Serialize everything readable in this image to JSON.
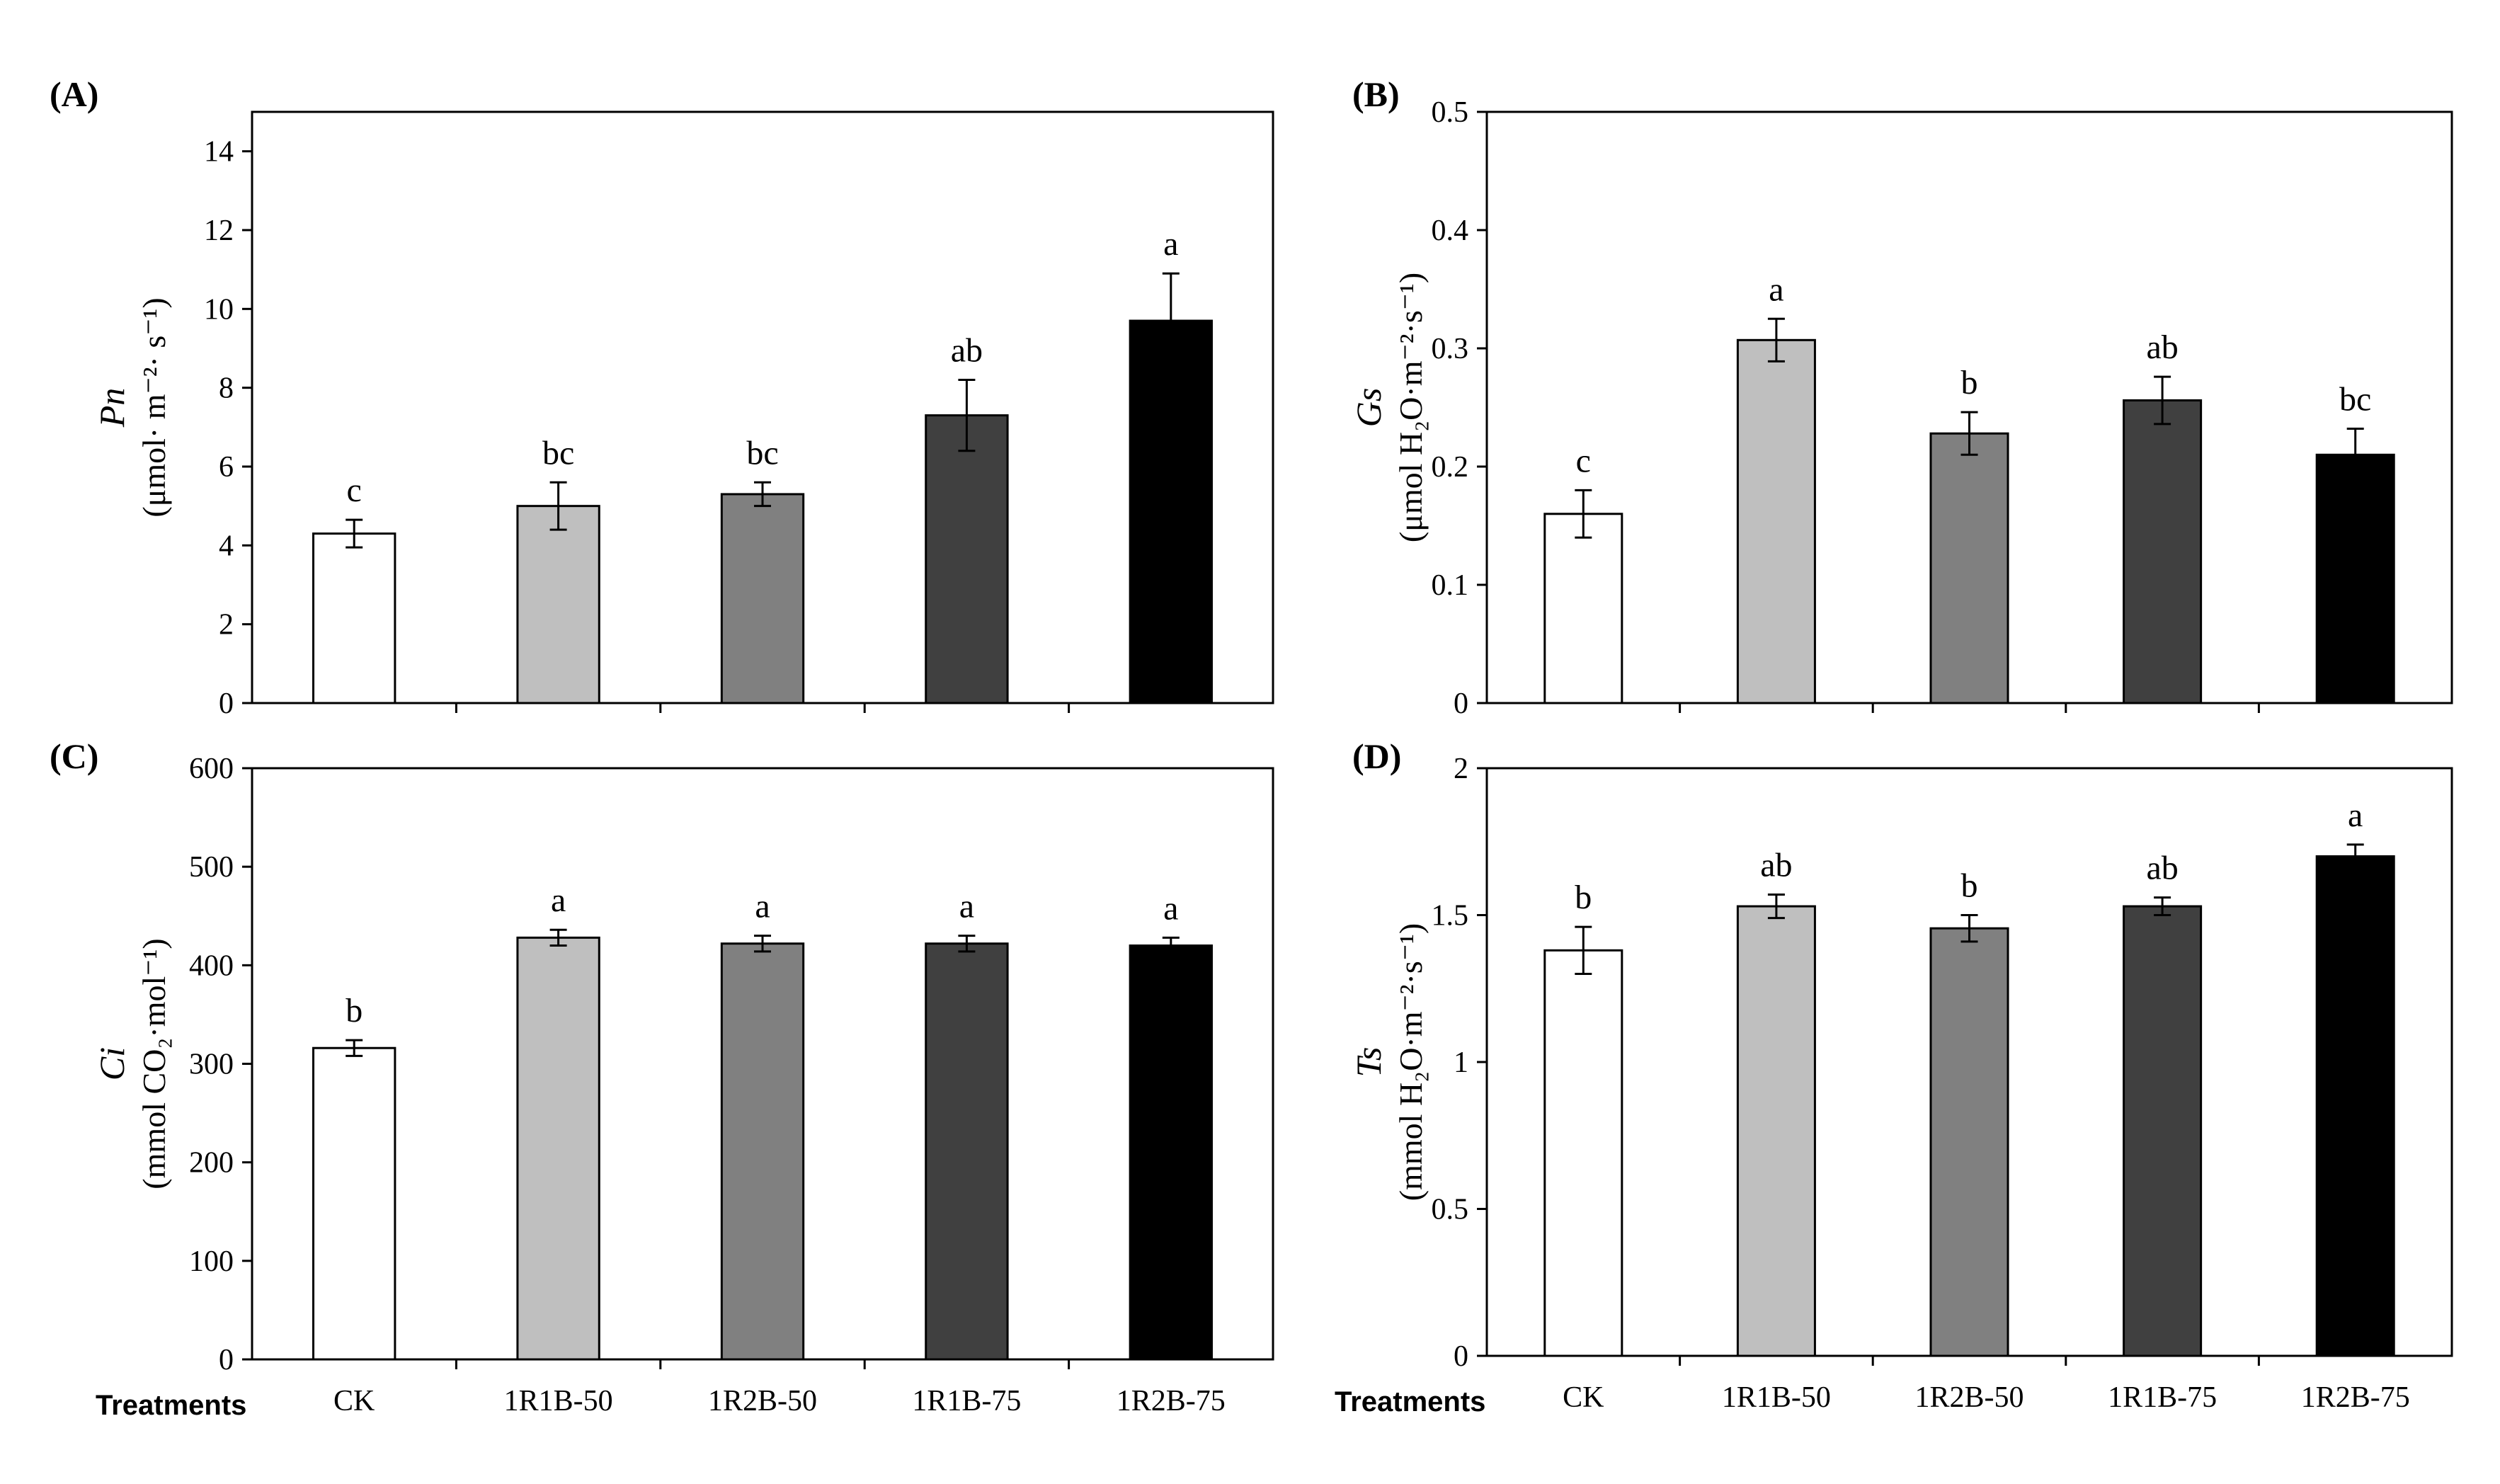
{
  "bar_colors": [
    "#ffffff",
    "#bfbfbf",
    "#808080",
    "#404040",
    "#000000"
  ],
  "chart_data": [
    {
      "type": "bar",
      "panel": "(A)",
      "ylabel_var": "Pn",
      "ylabel_unit": "(μmol· m⁻²· s⁻¹)",
      "xlabel": "",
      "categories": [
        "CK",
        "1R1B-50",
        "1R2B-50",
        "1R1B-75",
        "1R2B-75"
      ],
      "values": [
        4.3,
        5.0,
        5.3,
        7.3,
        9.7
      ],
      "errors": [
        0.35,
        0.6,
        0.3,
        0.9,
        1.2
      ],
      "significance": [
        "c",
        "bc",
        "bc",
        "ab",
        "a"
      ],
      "ylim": [
        0,
        15
      ],
      "yticks": [
        0,
        2,
        4,
        6,
        8,
        10,
        12,
        14
      ],
      "ytick_labels": [
        "0",
        "2",
        "4",
        "6",
        "8",
        "10",
        "12",
        "14"
      ],
      "show_category_labels": false
    },
    {
      "type": "bar",
      "panel": "(B)",
      "ylabel_var": "Gs",
      "ylabel_unit": "(μmol H₂O·m⁻²·s⁻¹)",
      "xlabel": "",
      "categories": [
        "CK",
        "1R1B-50",
        "1R2B-50",
        "1R1B-75",
        "1R2B-75"
      ],
      "values": [
        0.16,
        0.307,
        0.228,
        0.256,
        0.21
      ],
      "errors": [
        0.02,
        0.018,
        0.018,
        0.02,
        0.022
      ],
      "significance": [
        "c",
        "a",
        "b",
        "ab",
        "bc"
      ],
      "ylim": [
        0,
        0.5
      ],
      "yticks": [
        0,
        0.1,
        0.2,
        0.3,
        0.4,
        0.5
      ],
      "ytick_labels": [
        "0",
        "0.1",
        "0.2",
        "0.3",
        "0.4",
        "0.5"
      ],
      "show_category_labels": false
    },
    {
      "type": "bar",
      "panel": "(C)",
      "ylabel_var": "Ci",
      "ylabel_unit": "(mmol CO₂·mol⁻¹)",
      "xlabel": "Treatments",
      "categories": [
        "CK",
        "1R1B-50",
        "1R2B-50",
        "1R1B-75",
        "1R2B-75"
      ],
      "values": [
        316,
        428,
        422,
        422,
        420
      ],
      "errors": [
        8,
        8,
        8,
        8,
        8
      ],
      "significance": [
        "b",
        "a",
        "a",
        "a",
        "a"
      ],
      "ylim": [
        0,
        600
      ],
      "yticks": [
        0,
        100,
        200,
        300,
        400,
        500,
        600
      ],
      "ytick_labels": [
        "0",
        "100",
        "200",
        "300",
        "400",
        "500",
        "600"
      ],
      "show_category_labels": true
    },
    {
      "type": "bar",
      "panel": "(D)",
      "ylabel_var": "Ts",
      "ylabel_unit": "(mmol H₂O·m⁻²·s⁻¹)",
      "xlabel": "Treatments",
      "categories": [
        "CK",
        "1R1B-50",
        "1R2B-50",
        "1R1B-75",
        "1R2B-75"
      ],
      "values": [
        1.38,
        1.53,
        1.455,
        1.53,
        1.7
      ],
      "errors": [
        0.08,
        0.04,
        0.045,
        0.03,
        0.04
      ],
      "significance": [
        "b",
        "ab",
        "b",
        "ab",
        "a"
      ],
      "ylim": [
        0,
        2
      ],
      "yticks": [
        0,
        0.5,
        1,
        1.5,
        2
      ],
      "ytick_labels": [
        "0",
        "0.5",
        "1",
        "1.5",
        "2"
      ],
      "show_category_labels": true
    }
  ]
}
